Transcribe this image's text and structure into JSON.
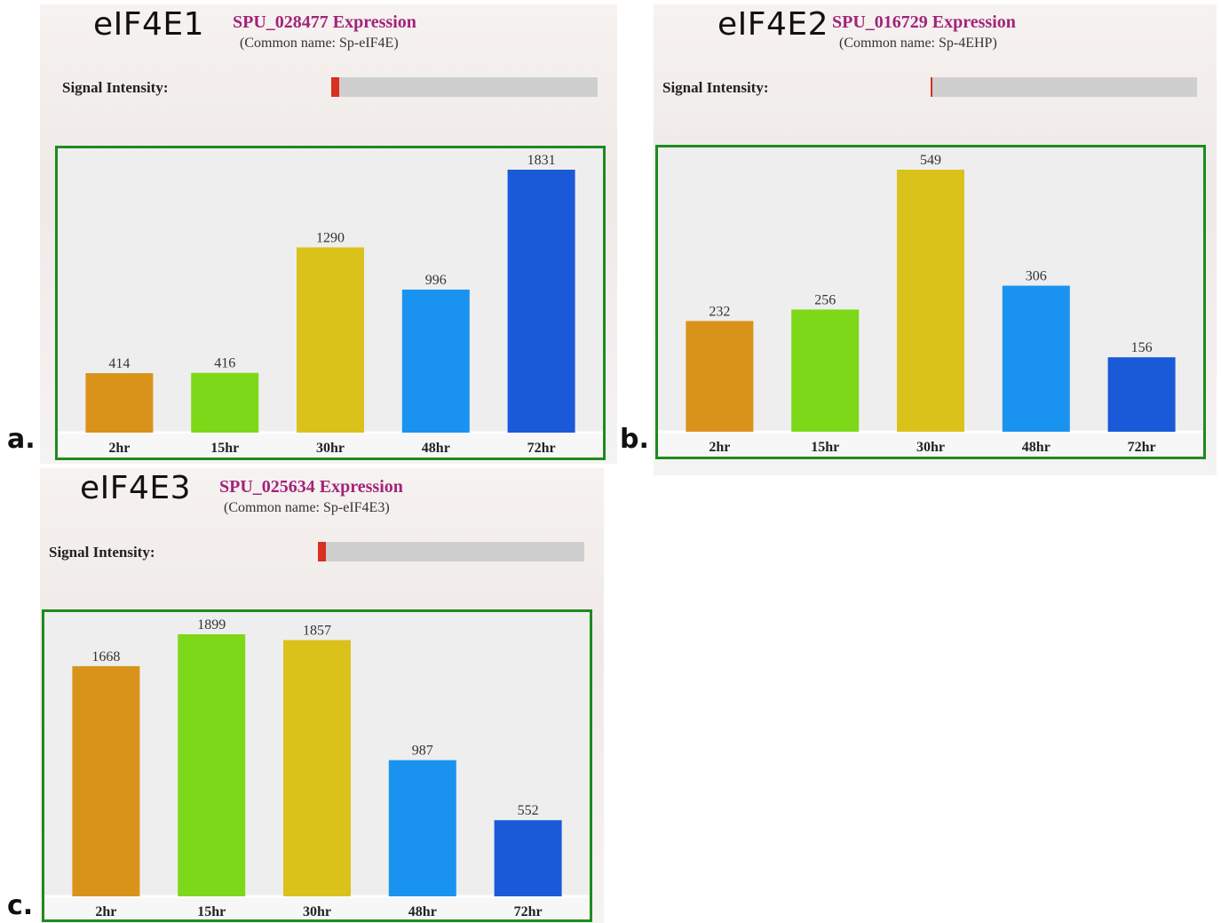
{
  "panels": {
    "a": {
      "letter": "a.",
      "gene": "eIF4E1",
      "expression_title": "SPU_028477 Expression",
      "common_name": "(Common name: Sp-eIF4E)",
      "signal_label": "Signal Intensity:",
      "signal_fraction": 0.03
    },
    "b": {
      "letter": "b.",
      "gene": "eIF4E2",
      "expression_title": "SPU_016729 Expression",
      "common_name": "(Common name: Sp-4EHP)",
      "signal_label": "Signal Intensity:",
      "signal_fraction": 0.007
    },
    "c": {
      "letter": "c.",
      "gene": "eIF4E3",
      "expression_title": "SPU_025634 Expression",
      "common_name": "(Common name: Sp-eIF4E3)",
      "signal_label": "Signal Intensity:",
      "signal_fraction": 0.03
    }
  },
  "colors": {
    "2hr": "#d9931a",
    "15hr": "#7ed81a",
    "30hr": "#dbc21a",
    "48hr": "#1a93f0",
    "72hr": "#1a5ad9",
    "frame": "#1f8a1f",
    "title": "#a3237a",
    "signal": "#d9301f"
  },
  "chart_data": [
    {
      "type": "bar",
      "categories": [
        "2hr",
        "15hr",
        "30hr",
        "48hr",
        "72hr"
      ],
      "values": [
        414,
        416,
        1290,
        996,
        1831
      ],
      "value_labels": [
        "414",
        "416",
        "1290",
        "996",
        "1831"
      ],
      "title": "",
      "xlabel": "",
      "ylabel": "",
      "ylim": [
        0,
        1831
      ],
      "grid": false
    },
    {
      "type": "bar",
      "categories": [
        "2hr",
        "15hr",
        "30hr",
        "48hr",
        "72hr"
      ],
      "values": [
        232,
        256,
        549,
        306,
        156
      ],
      "value_labels": [
        "232",
        "256",
        "549",
        "306",
        "156"
      ],
      "title": "",
      "xlabel": "",
      "ylabel": "",
      "ylim": [
        0,
        549
      ],
      "grid": false
    },
    {
      "type": "bar",
      "categories": [
        "2hr",
        "15hr",
        "30hr",
        "48hr",
        "72hr"
      ],
      "values": [
        1668,
        1899,
        1857,
        987,
        552
      ],
      "value_labels": [
        "1668",
        "1899",
        "1857",
        "987",
        "552"
      ],
      "title": "",
      "xlabel": "",
      "ylabel": "",
      "ylim": [
        0,
        1899
      ],
      "grid": false
    }
  ]
}
